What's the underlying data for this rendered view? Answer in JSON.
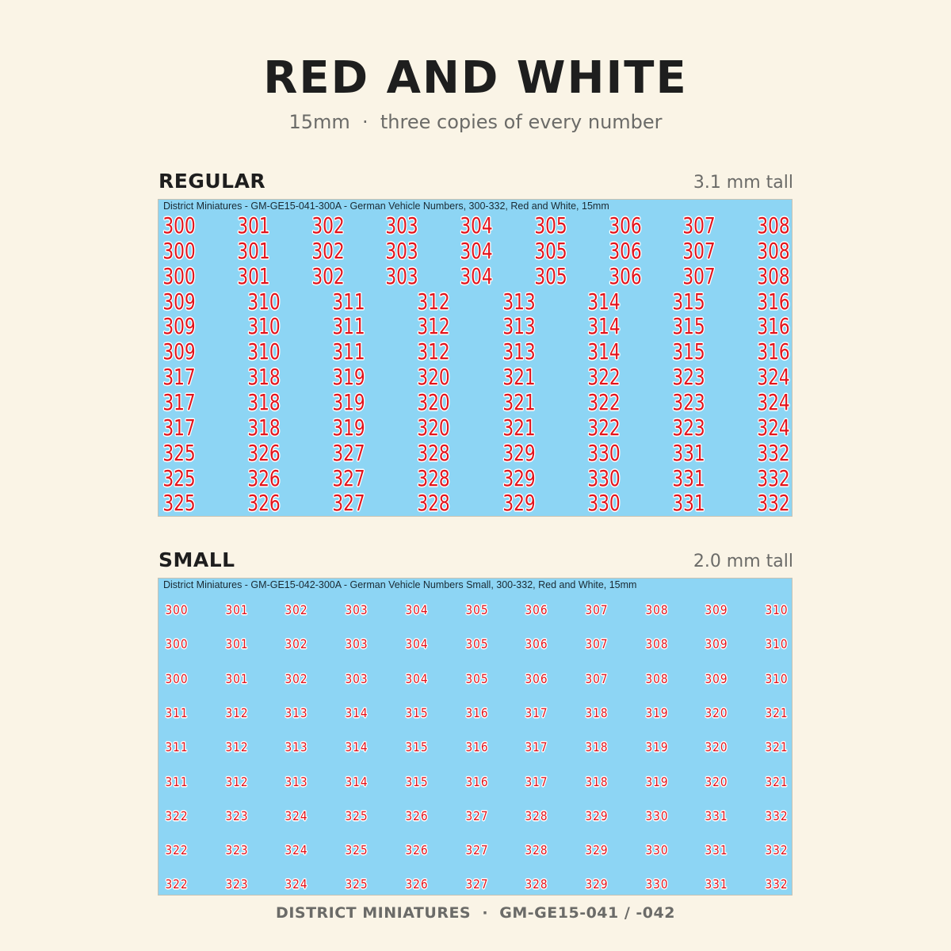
{
  "title": "RED AND WHITE",
  "subtitle": "15mm  ·  three copies of every number",
  "footer": "DISTRICT MINIATURES  ·  GM-GE15-041 / -042",
  "colors": {
    "background": "#faf4e6",
    "sheet": "#8dd5f4",
    "number_fill": "#e3141c",
    "number_outline": "#ffffff",
    "heading": "#1e1e1e",
    "muted": "#6b6b68"
  },
  "sections": {
    "regular": {
      "name": "REGULAR",
      "size": "3.1 mm tall",
      "caption": "District Miniatures - GM-GE15-041-300A - German Vehicle Numbers, 300-332, Red and White, 15mm",
      "copies": 3,
      "groups": [
        [
          "300",
          "301",
          "302",
          "303",
          "304",
          "305",
          "306",
          "307",
          "308"
        ],
        [
          "309",
          "310",
          "311",
          "312",
          "313",
          "314",
          "315",
          "316"
        ],
        [
          "317",
          "318",
          "319",
          "320",
          "321",
          "322",
          "323",
          "324"
        ],
        [
          "325",
          "326",
          "327",
          "328",
          "329",
          "330",
          "331",
          "332"
        ]
      ]
    },
    "small": {
      "name": "SMALL",
      "size": "2.0 mm tall",
      "caption": "District Miniatures - GM-GE15-042-300A - German Vehicle Numbers Small, 300-332, Red and White, 15mm",
      "copies": 3,
      "groups": [
        [
          "300",
          "301",
          "302",
          "303",
          "304",
          "305",
          "306",
          "307",
          "308",
          "309",
          "310"
        ],
        [
          "311",
          "312",
          "313",
          "314",
          "315",
          "316",
          "317",
          "318",
          "319",
          "320",
          "321"
        ],
        [
          "322",
          "323",
          "324",
          "325",
          "326",
          "327",
          "328",
          "329",
          "330",
          "331",
          "332"
        ]
      ]
    }
  }
}
